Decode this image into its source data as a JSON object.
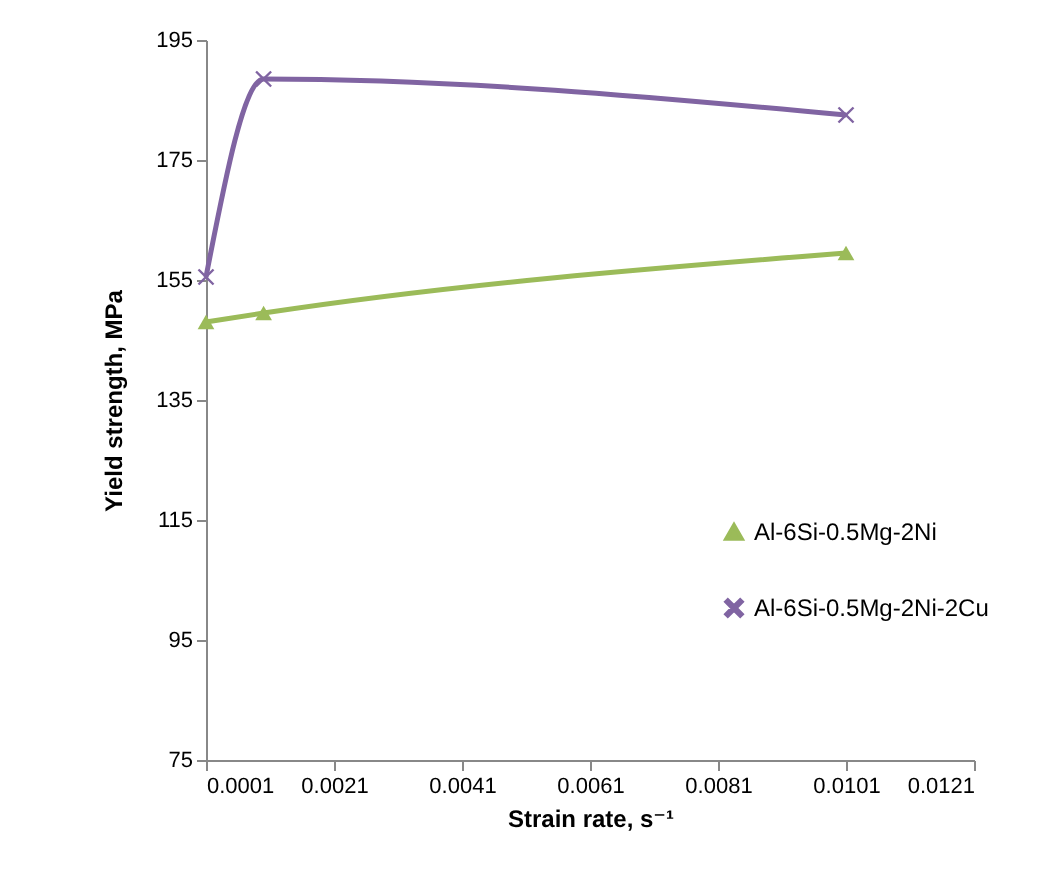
{
  "chart_data": {
    "type": "line",
    "xlabel": "Strain rate, s⁻¹",
    "ylabel": "Yield strength, MPa",
    "x": [
      0.0001,
      0.001,
      0.0101
    ],
    "series": [
      {
        "name": "Al-6Si-0.5Mg-2Ni",
        "color": "#9bbb59",
        "values": [
          148,
          149.5,
          159.5
        ],
        "marker": "triangle"
      },
      {
        "name": "Al-6Si-0.5Mg-2Ni-2Cu",
        "color": "#8064a2",
        "values": [
          155.5,
          188.5,
          182.5
        ],
        "marker": "cross"
      }
    ],
    "xlim": [
      0.0001,
      0.0121
    ],
    "xticks": [
      0.0001,
      0.0021,
      0.0041,
      0.0061,
      0.0081,
      0.0101,
      0.0121
    ],
    "ylim": [
      75,
      195
    ],
    "yticks": [
      75,
      95,
      115,
      135,
      155,
      175,
      195
    ],
    "grid": false,
    "legend": "right"
  }
}
